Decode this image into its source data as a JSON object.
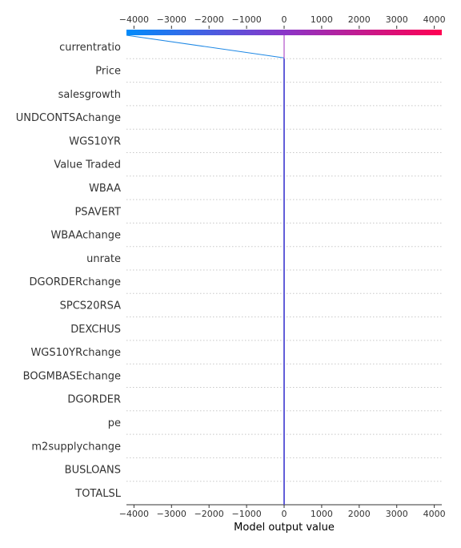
{
  "chart_data": {
    "type": "decision_plot",
    "xlabel": "Model output value",
    "xlim": [
      -4200,
      4200
    ],
    "xticks": [
      -4000,
      -3000,
      -2000,
      -1000,
      0,
      1000,
      2000,
      3000,
      4000
    ],
    "xtick_labels": [
      "−4000",
      "−3000",
      "−2000",
      "−1000",
      "0",
      "1000",
      "2000",
      "3000",
      "4000"
    ],
    "base_value": 0,
    "features": [
      "currentratio",
      "Price",
      "salesgrowth",
      "UNDCONTSAchange",
      "WGS10YR",
      "Value Traded",
      "WBAA",
      "PSAVERT",
      "WBAAchange",
      "unrate",
      "DGORDERchange",
      "SPCS20RSA",
      "DEXCHUS",
      "WGS10YRchange",
      "BOGMBASEchange",
      "DGORDER",
      "pe",
      "m2supplychange",
      "BUSLOANS",
      "TOTALSL"
    ],
    "decision_path_cumulative": [
      -4200,
      0,
      0,
      0,
      0,
      0,
      0,
      0,
      0,
      0,
      0,
      0,
      0,
      0,
      0,
      0,
      0,
      0,
      0,
      0,
      0
    ],
    "colorbar": {
      "low_color": "#008bfb",
      "high_color": "#ff0052"
    },
    "grid_lines": "dotted"
  }
}
